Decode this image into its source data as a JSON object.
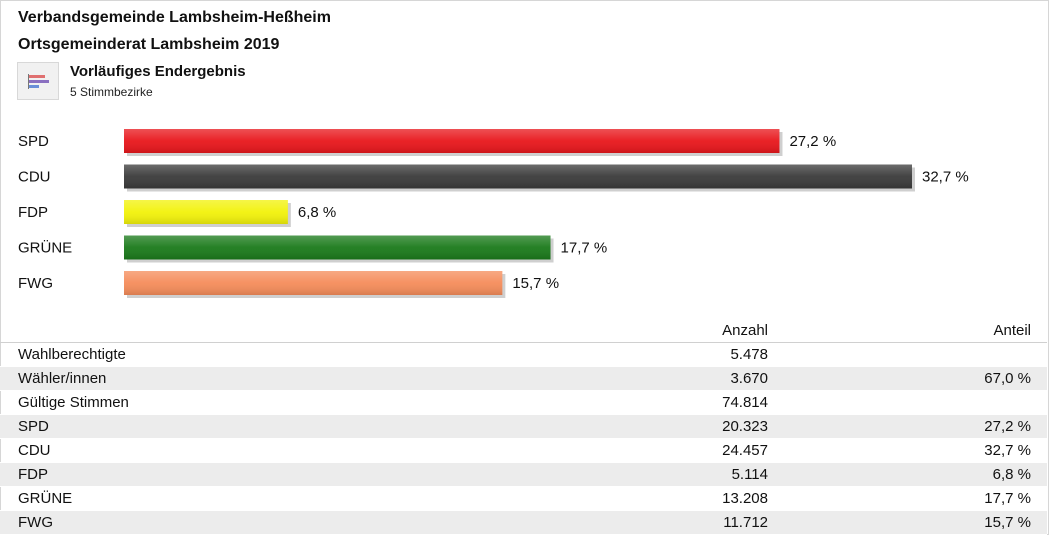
{
  "header": {
    "title1": "Verbandsgemeinde Lambsheim-Heßheim",
    "title2": "Ortsgemeinderat Lambsheim 2019",
    "result_title": "Vorläufiges Endergebnis",
    "result_subtitle": "5 Stimmbezirke",
    "icon": "bar-chart-icon"
  },
  "chart_data": {
    "type": "bar",
    "orientation": "horizontal",
    "categories": [
      "SPD",
      "CDU",
      "FDP",
      "GRÜNE",
      "FWG"
    ],
    "values": [
      27.2,
      32.7,
      6.8,
      17.7,
      15.7
    ],
    "value_labels": [
      "27,2 %",
      "32,7 %",
      "6,8 %",
      "17,7 %",
      "15,7 %"
    ],
    "colors": [
      "#e8161b",
      "#3a3a3a",
      "#f2f20a",
      "#1a7a1a",
      "#f58c5a"
    ],
    "xlim": [
      0,
      32.7
    ],
    "grid": false,
    "title": "",
    "xlabel": "",
    "ylabel": ""
  },
  "table": {
    "headers": {
      "anzahl": "Anzahl",
      "anteil": "Anteil"
    },
    "rows": [
      {
        "name": "Wahlberechtigte",
        "anzahl": "5.478",
        "anteil": ""
      },
      {
        "name": "Wähler/innen",
        "anzahl": "3.670",
        "anteil": "67,0 %"
      },
      {
        "name": "Gültige Stimmen",
        "anzahl": "74.814",
        "anteil": ""
      },
      {
        "name": "SPD",
        "anzahl": "20.323",
        "anteil": "27,2 %"
      },
      {
        "name": "CDU",
        "anzahl": "24.457",
        "anteil": "32,7 %"
      },
      {
        "name": "FDP",
        "anzahl": "5.114",
        "anteil": "6,8 %"
      },
      {
        "name": "GRÜNE",
        "anzahl": "13.208",
        "anteil": "17,7 %"
      },
      {
        "name": "FWG",
        "anzahl": "11.712",
        "anteil": "15,7 %"
      }
    ]
  }
}
